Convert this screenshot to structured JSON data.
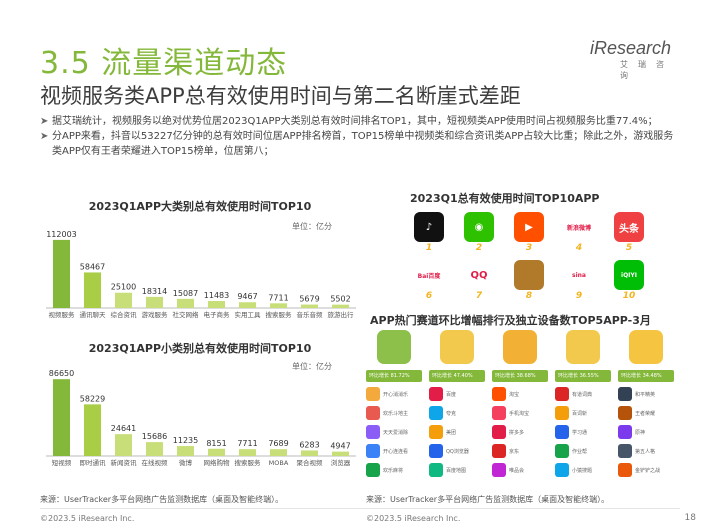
{
  "header": {
    "title": "3.5 流量渠道动态",
    "subtitle": "视频服务类APP总有效使用时间与第二名断崖式差距",
    "logo_main": "iResearch",
    "logo_sub": "艾瑞咨询"
  },
  "bullets": [
    "据艾瑞统计，视频服务以绝对优势位居2023Q1APP大类别总有效时间排名TOP1，其中，短视频类APP使用时间占视频服务比重77.4%；",
    "分APP来看，抖音以53227亿分钟的总有效时间位居APP排名榜首，TOP15榜单中视频类和综合资讯类APP占较大比重；除此之外，游戏服务类APP仅有王者荣耀进入TOP15榜单，位居第八；"
  ],
  "bullet_marker": "➤",
  "chart_data": [
    {
      "type": "bar",
      "title": "2023Q1APP大类别总有效使用时间TOP10",
      "unit": "单位：亿分",
      "categories": [
        "视频服务",
        "通讯聊天",
        "综合资讯",
        "游戏服务",
        "社交网络",
        "电子商务",
        "实用工具",
        "搜索服务",
        "音乐音频",
        "旅游出行"
      ],
      "values": [
        112003,
        58467,
        25100,
        18314,
        15087,
        11483,
        9467,
        7711,
        5679,
        5502
      ],
      "value_labels": [
        "112003",
        "58467",
        "25100",
        "18314",
        "15087",
        "11483",
        "9467",
        "7711",
        "5679",
        "5502"
      ],
      "colors": [
        "#84b83a",
        "#a9cd45",
        "#c8de79",
        "#c8de79",
        "#c8de79",
        "#c8de79",
        "#c8de79",
        "#c8de79",
        "#c8de79",
        "#c8de79"
      ],
      "ylim": [
        0,
        125000
      ]
    },
    {
      "type": "bar",
      "title": "2023Q1APP小类别总有效使用时间TOP10",
      "unit": "单位：亿分",
      "categories": [
        "短视频",
        "即时通讯",
        "新闻资讯",
        "在线视频",
        "微博",
        "网络购物",
        "搜索服务",
        "MOBA",
        "聚合视频",
        "浏览器"
      ],
      "values": [
        86650,
        58229,
        24641,
        15686,
        11235,
        8151,
        7711,
        7689,
        6283,
        4947
      ],
      "value_labels": [
        "86650",
        "58229",
        "24641",
        "15686",
        "11235",
        "8151",
        "7711",
        "7689",
        "6283",
        "4947"
      ],
      "colors": [
        "#84b83a",
        "#a9cd45",
        "#c8de79",
        "#c8de79",
        "#c8de79",
        "#c8de79",
        "#c8de79",
        "#c8de79",
        "#c8de79",
        "#c8de79"
      ],
      "ylim": [
        0,
        97000
      ]
    }
  ],
  "top10": {
    "title": "2023Q1总有效使用时间TOP10APP",
    "apps": [
      {
        "rank": "1",
        "icon": "tiktok-icon",
        "glyph": "♪",
        "color": "#111111"
      },
      {
        "rank": "2",
        "icon": "wechat-icon",
        "glyph": "◉",
        "color": "#2dc100"
      },
      {
        "rank": "3",
        "icon": "kuaishou-icon",
        "glyph": "▶",
        "color": "#ff5000"
      },
      {
        "rank": "4",
        "icon": "weibo-icon",
        "glyph": "新浪微博",
        "color": "#ffffff"
      },
      {
        "rank": "5",
        "icon": "toutiao-icon",
        "glyph": "头条",
        "color": "#f04142"
      },
      {
        "rank": "6",
        "icon": "baidu-icon",
        "glyph": "Bai百度",
        "color": "#ffffff"
      },
      {
        "rank": "7",
        "icon": "qq-icon",
        "glyph": "QQ",
        "color": "#ffffff"
      },
      {
        "rank": "8",
        "icon": "honor-of-kings-icon",
        "glyph": "",
        "color": "#b07a2a"
      },
      {
        "rank": "9",
        "icon": "sina-icon",
        "glyph": "sina",
        "color": "#ffffff"
      },
      {
        "rank": "10",
        "icon": "iqiyi-icon",
        "glyph": "iQIYI",
        "color": "#00be06"
      }
    ]
  },
  "growth": {
    "title": "APP热门赛道环比增幅排行及独立设备数TOP5APP-3月",
    "columns": [
      {
        "color": "#8cc04b",
        "names": [
          "开心消消乐",
          "欢乐斗地主",
          "天天爱消除",
          "开心连连看",
          "欢乐麻将"
        ],
        "icons": [
          "#f3a93c",
          "#e85a4f",
          "#8b5cf6",
          "#3b82f6",
          "#16a34a"
        ]
      },
      {
        "color": "#f2c94c",
        "names": [
          "百度",
          "夸克",
          "美团",
          "QQ浏览器",
          "百度地图"
        ],
        "icons": [
          "#e11d48",
          "#0ea5e9",
          "#f59e0b",
          "#2563eb",
          "#10b981"
        ]
      },
      {
        "color": "#f2b134",
        "names": [
          "淘宝",
          "手机淘宝",
          "拼多多",
          "京东",
          "唯品会"
        ],
        "icons": [
          "#ff5000",
          "#f43f5e",
          "#e11d48",
          "#dc2626",
          "#c026d3"
        ]
      },
      {
        "color": "#f2c94c",
        "names": [
          "有道词典",
          "百词斩",
          "学习通",
          "作业帮",
          "小猿搜题"
        ],
        "icons": [
          "#dc2626",
          "#f59e0b",
          "#2563eb",
          "#16a34a",
          "#0ea5e9"
        ]
      },
      {
        "color": "#f5c542",
        "names": [
          "和平精英",
          "王者荣耀",
          "原神",
          "第五人格",
          "金铲铲之战"
        ],
        "icons": [
          "#334155",
          "#b45309",
          "#7c3aed",
          "#475569",
          "#ea580c"
        ]
      }
    ],
    "tags": [
      "环比增长 81.72%",
      "环比增长 47.40%",
      "环比增长 38.68%",
      "环比增长 36.55%",
      "环比增长 34.48%"
    ]
  },
  "sources": {
    "left": "来源：UserTracker多平台网络广告监测数据库（桌面及智能终端）。",
    "right": "来源：UserTracker多平台网络广告监测数据库（桌面及智能终端）。"
  },
  "footer": {
    "left": "©2023.5 iResearch Inc.",
    "right": "©2023.5 iResearch Inc.",
    "page": "18"
  }
}
